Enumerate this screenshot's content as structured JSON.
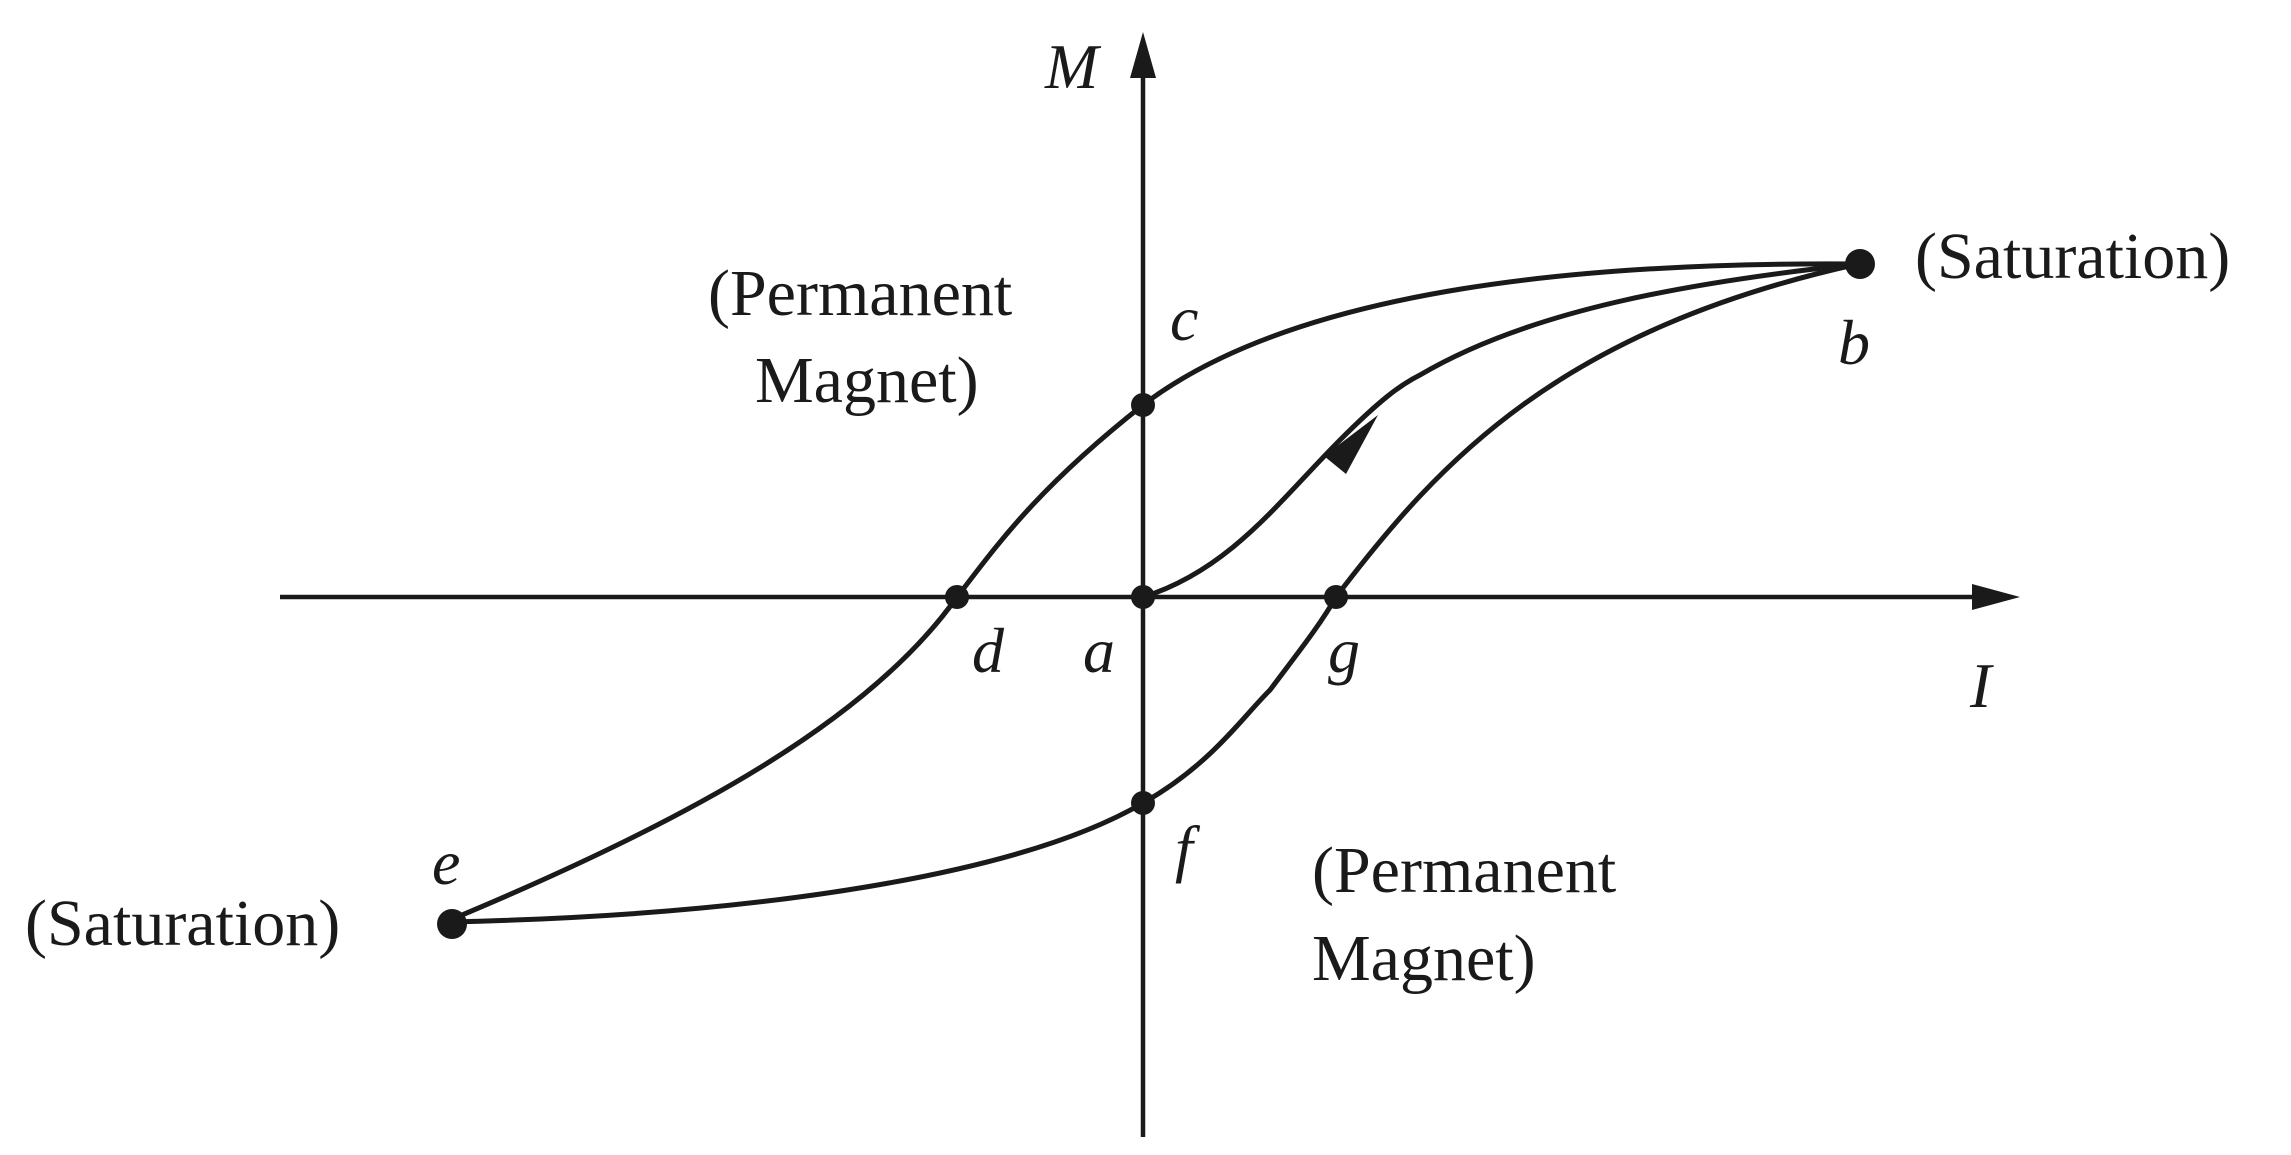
{
  "axes": {
    "x_label": "I",
    "y_label": "M"
  },
  "points": {
    "a": "a",
    "b": "b",
    "c": "c",
    "d": "d",
    "e": "e",
    "f": "f",
    "g": "g"
  },
  "annotations": {
    "saturation_right": "(Saturation)",
    "saturation_left": "(Saturation)",
    "permanent_magnet_top_line1": "(Permanent",
    "permanent_magnet_top_line2": "Magnet)",
    "permanent_magnet_bottom_line1": "(Permanent",
    "permanent_magnet_bottom_line2": "Magnet)"
  }
}
